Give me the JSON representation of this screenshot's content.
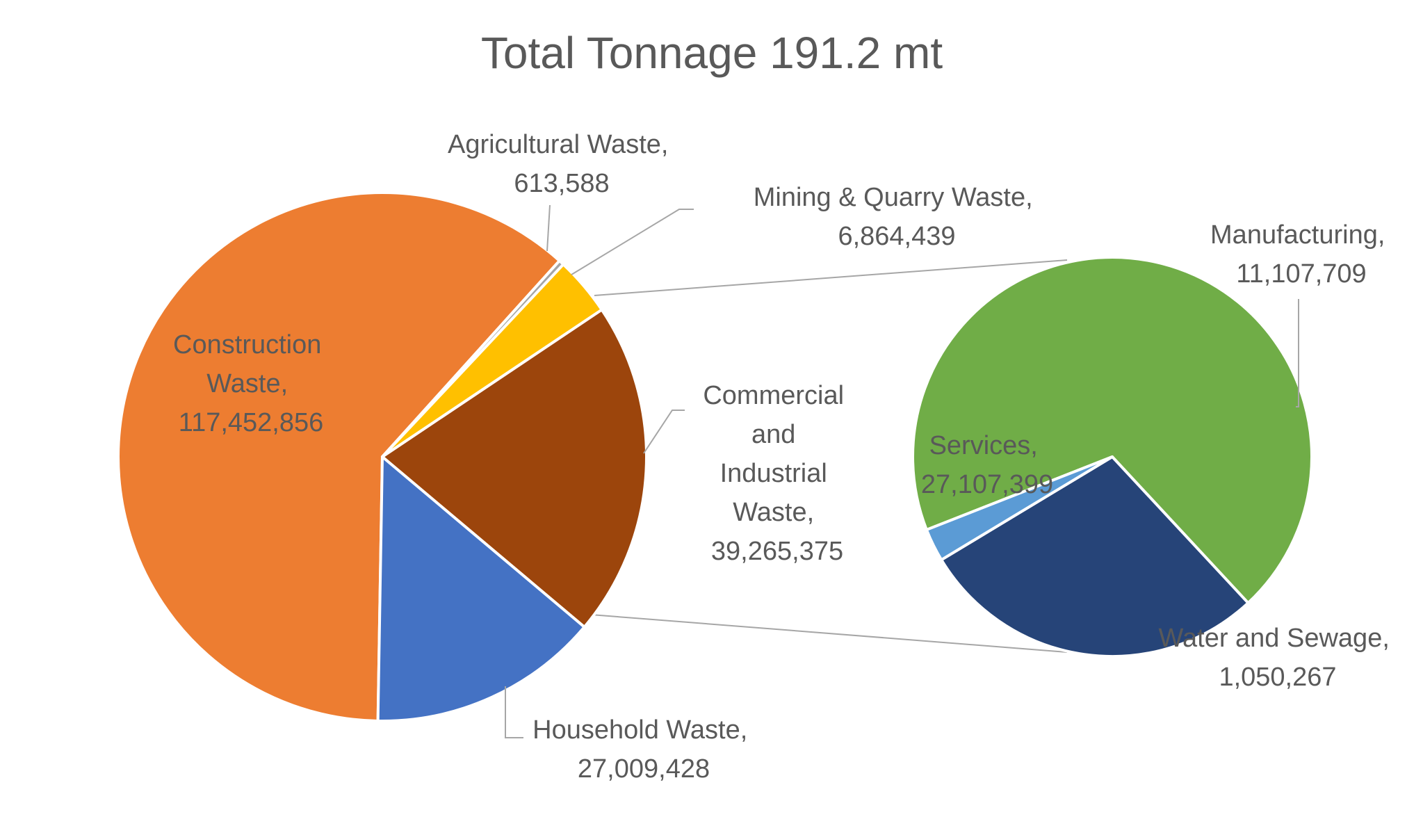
{
  "chart_data": {
    "type": "pie",
    "subtype": "pie-of-pie",
    "title": "Total Tonnage 191.2 mt",
    "main_pie": [
      {
        "name": "Construction Waste",
        "value": 117452856,
        "value_label": "117,452,856",
        "color": "#ED7D31"
      },
      {
        "name": "Agricultural Waste",
        "value": 613588,
        "value_label": "613,588",
        "color": "#A5A5A5"
      },
      {
        "name": "Mining & Quarry Waste",
        "value": 6864439,
        "value_label": "6,864,439",
        "color": "#FFC000"
      },
      {
        "name": "Commercial and Industrial Waste",
        "value": 39265375,
        "value_label": "39,265,375",
        "color": "#9C450C"
      },
      {
        "name": "Household Waste",
        "value": 27009428,
        "value_label": "27,009,428",
        "color": "#4472C4"
      }
    ],
    "secondary_pie": {
      "parent": "Commercial and Industrial Waste",
      "slices": [
        {
          "name": "Services",
          "value": 27107399,
          "value_label": "27,107,399",
          "color": "#70AD47"
        },
        {
          "name": "Manufacturing",
          "value": 11107709,
          "value_label": "11,107,709",
          "color": "#264478"
        },
        {
          "name": "Water and Sewage",
          "value": 1050267,
          "value_label": "1,050,267",
          "color": "#5B9BD5"
        }
      ]
    },
    "legend": "none",
    "data_labels": "category name, value"
  },
  "labels": {
    "construction": [
      "Construction",
      "Waste,",
      "117,452,856"
    ],
    "agricultural": [
      "Agricultural Waste,",
      "613,588"
    ],
    "mining": [
      "Mining & Quarry Waste,",
      "6,864,439"
    ],
    "commercial": [
      "Commercial",
      "and",
      "Industrial",
      "Waste,",
      "39,265,375"
    ],
    "household": [
      "Household Waste,",
      "27,009,428"
    ],
    "services": [
      "Services,",
      "27,107,399"
    ],
    "manufacturing": [
      "Manufacturing,",
      "11,107,709"
    ],
    "water": [
      "Water and Sewage,",
      "1,050,267"
    ]
  }
}
